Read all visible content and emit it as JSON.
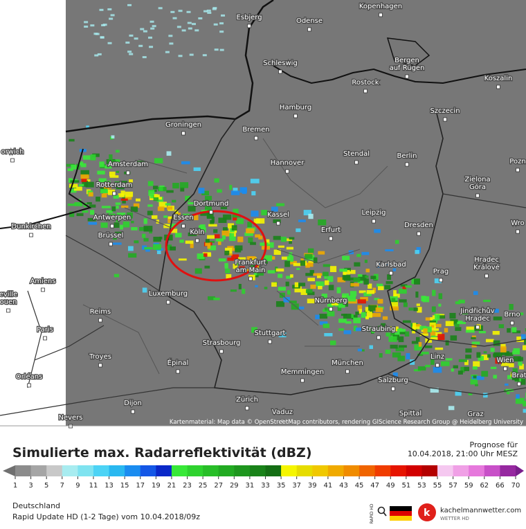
{
  "map": {
    "attribution": "Kartenmaterial: Map data © OpenStreetMap contributors, rendering GIScience Research Group @ Heidelberg University",
    "cities": [
      {
        "lines": [
          "Esbjerg"
        ]
      },
      {
        "lines": [
          "Odense"
        ]
      },
      {
        "lines": [
          "Kopenhagen"
        ]
      },
      {
        "lines": [
          "Schleswig"
        ]
      },
      {
        "lines": [
          "Bergen",
          "auf Rügen"
        ]
      },
      {
        "lines": [
          "Rostock"
        ]
      },
      {
        "lines": [
          "Koszalin"
        ]
      },
      {
        "lines": [
          "Hamburg"
        ]
      },
      {
        "lines": [
          "Szczecin"
        ]
      },
      {
        "lines": [
          "Groningen"
        ]
      },
      {
        "lines": [
          "Bremen"
        ]
      },
      {
        "lines": [
          "Amsterdam"
        ]
      },
      {
        "lines": [
          "Hannover"
        ]
      },
      {
        "lines": [
          "Stendal"
        ]
      },
      {
        "lines": [
          "Berlin"
        ]
      },
      {
        "lines": [
          "Zielona",
          "Góra"
        ]
      },
      {
        "lines": [
          "Rotterdam"
        ]
      },
      {
        "lines": [
          "Dortmund"
        ]
      },
      {
        "lines": [
          "Kassel"
        ]
      },
      {
        "lines": [
          "Leipzig"
        ]
      },
      {
        "lines": [
          "Dresden"
        ]
      },
      {
        "lines": [
          "Antwerpen"
        ]
      },
      {
        "lines": [
          "Essen"
        ]
      },
      {
        "lines": [
          "Köln"
        ]
      },
      {
        "lines": [
          "Erfurt"
        ]
      },
      {
        "lines": [
          "Wro"
        ]
      },
      {
        "lines": [
          "Brüssel"
        ]
      },
      {
        "lines": [
          "Dunkirchen"
        ]
      },
      {
        "lines": [
          "Frankfurt",
          "am Main"
        ]
      },
      {
        "lines": [
          "Karlsbad"
        ]
      },
      {
        "lines": [
          "Hradec",
          "Králové"
        ]
      },
      {
        "lines": [
          "Prag"
        ]
      },
      {
        "lines": [
          "Amiens"
        ]
      },
      {
        "lines": [
          "Luxemburg"
        ]
      },
      {
        "lines": [
          "Nürnberg"
        ]
      },
      {
        "lines": [
          "Jindřichův",
          "Hradec"
        ]
      },
      {
        "lines": [
          "Brno"
        ]
      },
      {
        "lines": [
          "Reims"
        ]
      },
      {
        "lines": [
          "Stuttgart"
        ]
      },
      {
        "lines": [
          "Straubing"
        ]
      },
      {
        "lines": [
          "Paris"
        ]
      },
      {
        "lines": [
          "Strasbourg"
        ]
      },
      {
        "lines": [
          "Troyes"
        ]
      },
      {
        "lines": [
          "Épinal"
        ]
      },
      {
        "lines": [
          "München"
        ]
      },
      {
        "lines": [
          "Linz"
        ]
      },
      {
        "lines": [
          "Wien"
        ]
      },
      {
        "lines": [
          "Memmingen"
        ]
      },
      {
        "lines": [
          "Salzburg"
        ]
      },
      {
        "lines": [
          "Orléans"
        ]
      },
      {
        "lines": [
          "Dijon"
        ]
      },
      {
        "lines": [
          "Zürich"
        ]
      },
      {
        "lines": [
          "Vaduz"
        ]
      },
      {
        "lines": [
          "Spittal"
        ]
      },
      {
        "lines": [
          "Graz"
        ]
      },
      {
        "lines": [
          "Nevers"
        ]
      },
      {
        "lines": [
          "orwich"
        ]
      },
      {
        "lines": [
          "Brat"
        ]
      },
      {
        "lines": [
          "Pozn"
        ]
      },
      {
        "lines": [
          "eville",
          "ouen"
        ]
      }
    ]
  },
  "footer": {
    "title": "Simulierte max. Radarreflektivität (dBZ)",
    "forecast_label": "Prognose für",
    "forecast_time": "10.04.2018, 21:00 Uhr MESZ",
    "region": "Deutschland",
    "run": "Rapid Update HD (1-2 Tage) vom 10.04.2018/09z",
    "rapid_badge": "RAPID HD",
    "logo_title": "kachelmannwetter.com",
    "logo_subtitle": "WETTER HD"
  },
  "legend": {
    "ticks": [
      1,
      3,
      5,
      7,
      9,
      11,
      13,
      15,
      17,
      19,
      21,
      23,
      25,
      27,
      29,
      31,
      33,
      35,
      37,
      39,
      41,
      43,
      45,
      47,
      49,
      51,
      53,
      55,
      57,
      59,
      62,
      66,
      70
    ],
    "colors": [
      "#8c8c8c",
      "#a5a5a5",
      "#c8c8c8",
      "#a8ecf0",
      "#7fe3f0",
      "#4cd3f5",
      "#29b8f0",
      "#1a8cf0",
      "#1457e6",
      "#0a28c8",
      "#38e838",
      "#2ed22e",
      "#28be28",
      "#22aa22",
      "#1e961e",
      "#198219",
      "#146e14",
      "#f5f500",
      "#e6dc00",
      "#f0c800",
      "#f0aa00",
      "#f08c00",
      "#f06400",
      "#f03c00",
      "#e61400",
      "#d20000",
      "#b40000",
      "#f5c8f0",
      "#f0a0e6",
      "#e678dc",
      "#c850c8",
      "#9628a0"
    ]
  }
}
